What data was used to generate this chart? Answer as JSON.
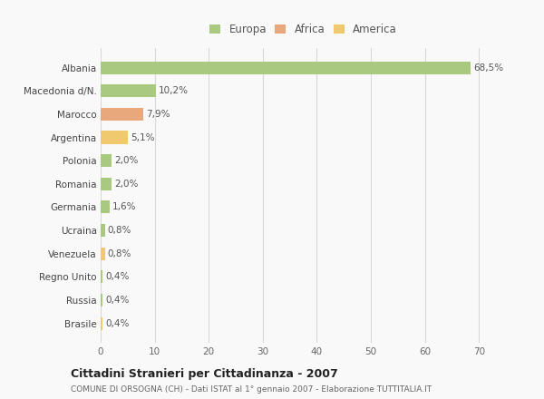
{
  "categories": [
    "Albania",
    "Macedonia d/N.",
    "Marocco",
    "Argentina",
    "Polonia",
    "Romania",
    "Germania",
    "Ucraina",
    "Venezuela",
    "Regno Unito",
    "Russia",
    "Brasile"
  ],
  "values": [
    68.5,
    10.2,
    7.9,
    5.1,
    2.0,
    2.0,
    1.6,
    0.8,
    0.8,
    0.4,
    0.4,
    0.4
  ],
  "labels": [
    "68,5%",
    "10,2%",
    "7,9%",
    "5,1%",
    "2,0%",
    "2,0%",
    "1,6%",
    "0,8%",
    "0,8%",
    "0,4%",
    "0,4%",
    "0,4%"
  ],
  "colors": [
    "#a8c97f",
    "#a8c97f",
    "#e8a87c",
    "#f0c96e",
    "#a8c97f",
    "#a8c97f",
    "#a8c97f",
    "#a8c97f",
    "#f0c96e",
    "#a8c97f",
    "#a8c97f",
    "#f0c96e"
  ],
  "legend_labels": [
    "Europa",
    "Africa",
    "America"
  ],
  "legend_colors": [
    "#a8c97f",
    "#e8a87c",
    "#f0c96e"
  ],
  "title": "Cittadini Stranieri per Cittadinanza - 2007",
  "subtitle": "COMUNE DI ORSOGNA (CH) - Dati ISTAT al 1° gennaio 2007 - Elaborazione TUTTITALIA.IT",
  "xlim": [
    0,
    75
  ],
  "xticks": [
    0,
    10,
    20,
    30,
    40,
    50,
    60,
    70
  ],
  "bg_color": "#f9f9f9",
  "grid_color": "#d8d8d8"
}
